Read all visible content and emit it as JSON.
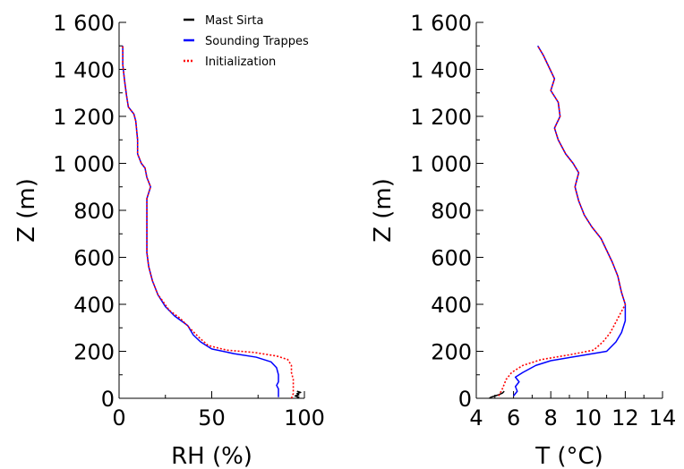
{
  "chart_data": [
    {
      "type": "line",
      "xlabel": "RH (%)",
      "ylabel": "Z (m)",
      "xlim": [
        0,
        100
      ],
      "ylim": [
        0,
        1600
      ],
      "xticks": [
        "0",
        "50",
        "100"
      ],
      "yticks": [
        "0",
        "200",
        "400",
        "600",
        "800",
        "1 000",
        "1 200",
        "1 400",
        "1 600"
      ],
      "legend": {
        "position": "top-right"
      },
      "series": [
        {
          "name": "Mast Sirta",
          "color": "#000000",
          "dash": "solid",
          "points": [
            [
              96,
              2
            ],
            [
              97,
              5
            ],
            [
              95,
              10
            ],
            [
              97,
              15
            ],
            [
              96,
              20
            ],
            [
              98,
              25
            ],
            [
              96,
              30
            ]
          ]
        },
        {
          "name": "Sounding Trappes",
          "color": "#0000ff",
          "dash": "solid",
          "points": [
            [
              86,
              5
            ],
            [
              86,
              20
            ],
            [
              86,
              40
            ],
            [
              85,
              55
            ],
            [
              86,
              70
            ],
            [
              86,
              100
            ],
            [
              85,
              130
            ],
            [
              82,
              155
            ],
            [
              74,
              175
            ],
            [
              62,
              190
            ],
            [
              50,
              210
            ],
            [
              44,
              240
            ],
            [
              40,
              270
            ],
            [
              37,
              310
            ],
            [
              30,
              350
            ],
            [
              25,
              390
            ],
            [
              21,
              440
            ],
            [
              18,
              500
            ],
            [
              16,
              560
            ],
            [
              15,
              620
            ],
            [
              15,
              700
            ],
            [
              15,
              780
            ],
            [
              15,
              850
            ],
            [
              17,
              900
            ],
            [
              15,
              940
            ],
            [
              14,
              980
            ],
            [
              12,
              1000
            ],
            [
              10,
              1040
            ],
            [
              10,
              1100
            ],
            [
              9,
              1180
            ],
            [
              8,
              1210
            ],
            [
              5,
              1240
            ],
            [
              4,
              1290
            ],
            [
              3,
              1350
            ],
            [
              2,
              1420
            ],
            [
              2,
              1500
            ]
          ]
        },
        {
          "name": "Initialization",
          "color": "#ff0000",
          "dash": "dotted",
          "points": [
            [
              93,
              0
            ],
            [
              94,
              20
            ],
            [
              94,
              50
            ],
            [
              94,
              80
            ],
            [
              93,
              110
            ],
            [
              93,
              140
            ],
            [
              91,
              165
            ],
            [
              85,
              180
            ],
            [
              73,
              195
            ],
            [
              58,
              205
            ],
            [
              48,
              225
            ],
            [
              43,
              260
            ],
            [
              38,
              300
            ],
            [
              33,
              340
            ],
            [
              27,
              375
            ],
            [
              23,
              420
            ],
            [
              21,
              440
            ],
            [
              18,
              500
            ],
            [
              16,
              560
            ],
            [
              15,
              620
            ],
            [
              15,
              700
            ],
            [
              15,
              780
            ],
            [
              15,
              850
            ],
            [
              17,
              900
            ],
            [
              15,
              940
            ],
            [
              14,
              980
            ],
            [
              12,
              1000
            ],
            [
              10,
              1040
            ],
            [
              10,
              1100
            ],
            [
              9,
              1180
            ],
            [
              8,
              1210
            ],
            [
              5,
              1240
            ],
            [
              4,
              1290
            ],
            [
              3,
              1350
            ],
            [
              2,
              1420
            ],
            [
              2,
              1500
            ]
          ]
        }
      ]
    },
    {
      "type": "line",
      "xlabel": "T (°C)",
      "ylabel": "Z (m)",
      "xlim": [
        4,
        14
      ],
      "ylim": [
        0,
        1600
      ],
      "xticks": [
        "4",
        "6",
        "8",
        "10",
        "12",
        "14"
      ],
      "yticks": [
        "0",
        "200",
        "400",
        "600",
        "800",
        "1 000",
        "1 200",
        "1 400",
        "1 600"
      ],
      "series": [
        {
          "name": "Mast Sirta",
          "color": "#000000",
          "dash": "solid",
          "points": [
            [
              4.7,
              0
            ],
            [
              4.8,
              5
            ],
            [
              5.0,
              10
            ],
            [
              5.2,
              15
            ],
            [
              5.4,
              22
            ],
            [
              5.5,
              30
            ]
          ]
        },
        {
          "name": "Sounding Trappes",
          "color": "#0000ff",
          "dash": "solid",
          "points": [
            [
              6.0,
              10
            ],
            [
              6.2,
              30
            ],
            [
              6.1,
              50
            ],
            [
              6.3,
              70
            ],
            [
              6.1,
              90
            ],
            [
              6.5,
              110
            ],
            [
              7.2,
              140
            ],
            [
              8.0,
              160
            ],
            [
              9.5,
              180
            ],
            [
              11.0,
              200
            ],
            [
              11.5,
              240
            ],
            [
              11.8,
              280
            ],
            [
              12.0,
              330
            ],
            [
              12.0,
              400
            ],
            [
              11.8,
              450
            ],
            [
              11.6,
              520
            ],
            [
              11.3,
              580
            ],
            [
              11.0,
              630
            ],
            [
              10.7,
              680
            ],
            [
              10.2,
              730
            ],
            [
              9.8,
              780
            ],
            [
              9.5,
              840
            ],
            [
              9.3,
              900
            ],
            [
              9.5,
              960
            ],
            [
              9.2,
              1000
            ],
            [
              8.8,
              1040
            ],
            [
              8.4,
              1100
            ],
            [
              8.2,
              1150
            ],
            [
              8.5,
              1200
            ],
            [
              8.4,
              1260
            ],
            [
              8.0,
              1310
            ],
            [
              8.2,
              1360
            ],
            [
              7.9,
              1410
            ],
            [
              7.6,
              1460
            ],
            [
              7.3,
              1500
            ]
          ]
        },
        {
          "name": "Initialization",
          "color": "#ff0000",
          "dash": "dotted",
          "points": [
            [
              5.2,
              10
            ],
            [
              5.4,
              40
            ],
            [
              5.6,
              80
            ],
            [
              5.9,
              110
            ],
            [
              6.5,
              140
            ],
            [
              7.5,
              165
            ],
            [
              9.0,
              185
            ],
            [
              10.3,
              205
            ],
            [
              10.8,
              240
            ],
            [
              11.2,
              280
            ],
            [
              11.6,
              340
            ],
            [
              12.0,
              400
            ],
            [
              11.8,
              450
            ],
            [
              11.6,
              520
            ],
            [
              11.3,
              580
            ],
            [
              11.0,
              630
            ],
            [
              10.7,
              680
            ],
            [
              10.2,
              730
            ],
            [
              9.8,
              780
            ],
            [
              9.5,
              840
            ],
            [
              9.3,
              900
            ],
            [
              9.5,
              960
            ],
            [
              9.2,
              1000
            ],
            [
              8.8,
              1040
            ],
            [
              8.4,
              1100
            ],
            [
              8.2,
              1150
            ],
            [
              8.5,
              1200
            ],
            [
              8.4,
              1260
            ],
            [
              8.0,
              1310
            ],
            [
              8.2,
              1360
            ],
            [
              7.9,
              1410
            ],
            [
              7.6,
              1460
            ],
            [
              7.3,
              1500
            ]
          ]
        }
      ]
    }
  ]
}
